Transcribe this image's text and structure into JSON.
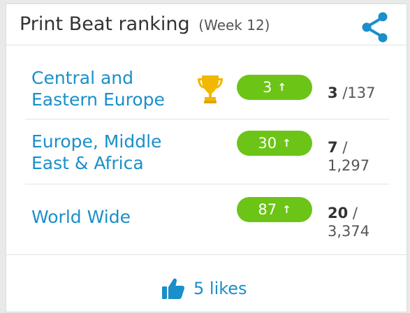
{
  "header": {
    "title": "Print Beat ranking",
    "subtitle": "(Week 12)",
    "share_icon": "share-icon"
  },
  "rankings": [
    {
      "region_line1": "Central and",
      "region_line2": "Eastern Europe",
      "change": "3",
      "change_arrow": "↑",
      "position": "3",
      "total_inline": "/137",
      "total_line2": "",
      "award_icon": "trophy-icon"
    },
    {
      "region_line1": "Europe, Middle",
      "region_line2": "East & Africa",
      "change": "30",
      "change_arrow": "↑",
      "position": "7",
      "total_inline": "/",
      "total_line2": "1,297"
    },
    {
      "region_line1": "World Wide",
      "region_line2": "",
      "change": "87",
      "change_arrow": "↑",
      "position": "20",
      "total_inline": "/",
      "total_line2": "3,374"
    }
  ],
  "footer": {
    "likes_label": "5 likes",
    "like_icon": "thumbs-up-icon"
  },
  "colors": {
    "accent_blue": "#1a8fc9",
    "pill_green": "#6cc416",
    "trophy_gold": "#f2b700"
  }
}
